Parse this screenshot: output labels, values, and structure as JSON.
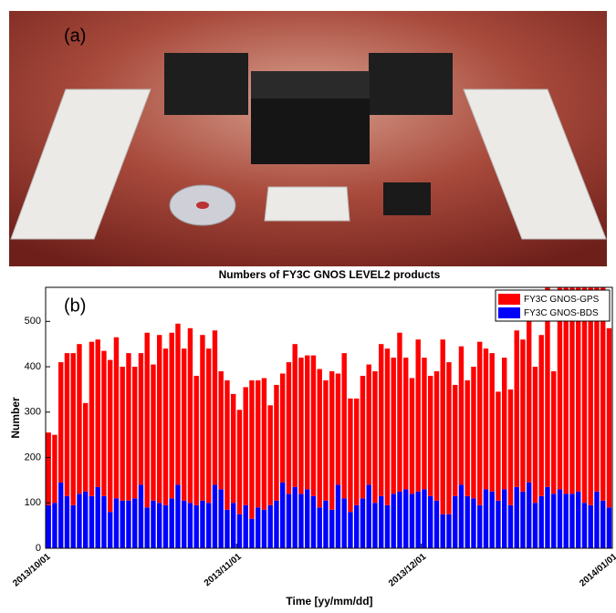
{
  "photo": {
    "label": "(a)"
  },
  "chart_data": {
    "type": "stacked_bar",
    "title": "Numbers of FY3C GNOS LEVEL2 products",
    "annotation": "(b)",
    "xlabel": "Time [yy/mm/dd]",
    "ylabel": "Number",
    "x": [
      0,
      1,
      2,
      3,
      4,
      5,
      6,
      7,
      8,
      9,
      10,
      11,
      12,
      13,
      14,
      15,
      16,
      17,
      18,
      19,
      20,
      21,
      22,
      23,
      24,
      25,
      26,
      27,
      28,
      29,
      30,
      31,
      32,
      33,
      34,
      35,
      36,
      37,
      38,
      39,
      40,
      41,
      42,
      43,
      44,
      45,
      46,
      47,
      48,
      49,
      50,
      51,
      52,
      53,
      54,
      55,
      56,
      57,
      58,
      59,
      60,
      61,
      62,
      63,
      64,
      65,
      66,
      67,
      68,
      69,
      70,
      71,
      72,
      73,
      74,
      75,
      76,
      77,
      78,
      79,
      80,
      81,
      82,
      83,
      84,
      85,
      86,
      87,
      88,
      89,
      90,
      91
    ],
    "xlim": [
      0,
      92
    ],
    "xticks": [
      {
        "value": 0,
        "label": "2013/10/01"
      },
      {
        "value": 31,
        "label": "2013/11/01"
      },
      {
        "value": 61,
        "label": "2013/12/01"
      },
      {
        "value": 92,
        "label": "2014/01/01"
      }
    ],
    "ylim": [
      0,
      575
    ],
    "yticks": [
      0,
      100,
      200,
      300,
      400,
      500
    ],
    "legend": "upper right",
    "series": [
      {
        "name": "FY3C GNOS-BDS",
        "color": "#0000ff",
        "values": [
          95,
          100,
          145,
          115,
          95,
          120,
          125,
          115,
          135,
          115,
          80,
          110,
          105,
          105,
          110,
          140,
          90,
          105,
          100,
          95,
          110,
          140,
          105,
          100,
          95,
          105,
          100,
          140,
          130,
          85,
          100,
          75,
          95,
          65,
          90,
          85,
          95,
          105,
          145,
          120,
          135,
          120,
          130,
          115,
          90,
          105,
          85,
          140,
          110,
          80,
          95,
          110,
          140,
          100,
          115,
          95,
          120,
          125,
          130,
          120,
          125,
          130,
          115,
          105,
          75,
          75,
          115,
          140,
          115,
          110,
          95,
          130,
          125,
          105,
          130,
          95,
          135,
          125,
          145,
          100,
          115,
          135,
          120,
          130,
          120,
          120,
          125,
          100,
          95,
          125,
          105,
          90
        ]
      },
      {
        "name": "FY3C GNOS-GPS",
        "color": "#ff0000",
        "values": [
          160,
          150,
          265,
          315,
          335,
          330,
          195,
          340,
          325,
          320,
          335,
          355,
          295,
          325,
          290,
          290,
          385,
          300,
          370,
          345,
          365,
          355,
          335,
          385,
          285,
          365,
          340,
          340,
          260,
          285,
          240,
          230,
          260,
          305,
          280,
          290,
          220,
          255,
          240,
          290,
          315,
          300,
          295,
          310,
          305,
          265,
          305,
          245,
          320,
          250,
          235,
          270,
          265,
          290,
          335,
          345,
          300,
          350,
          290,
          255,
          335,
          290,
          265,
          285,
          385,
          335,
          245,
          305,
          255,
          290,
          360,
          310,
          305,
          240,
          290,
          255,
          345,
          335,
          355,
          300,
          355,
          445,
          270,
          450,
          460,
          460,
          455,
          480,
          485,
          455,
          475,
          395
        ]
      }
    ]
  }
}
